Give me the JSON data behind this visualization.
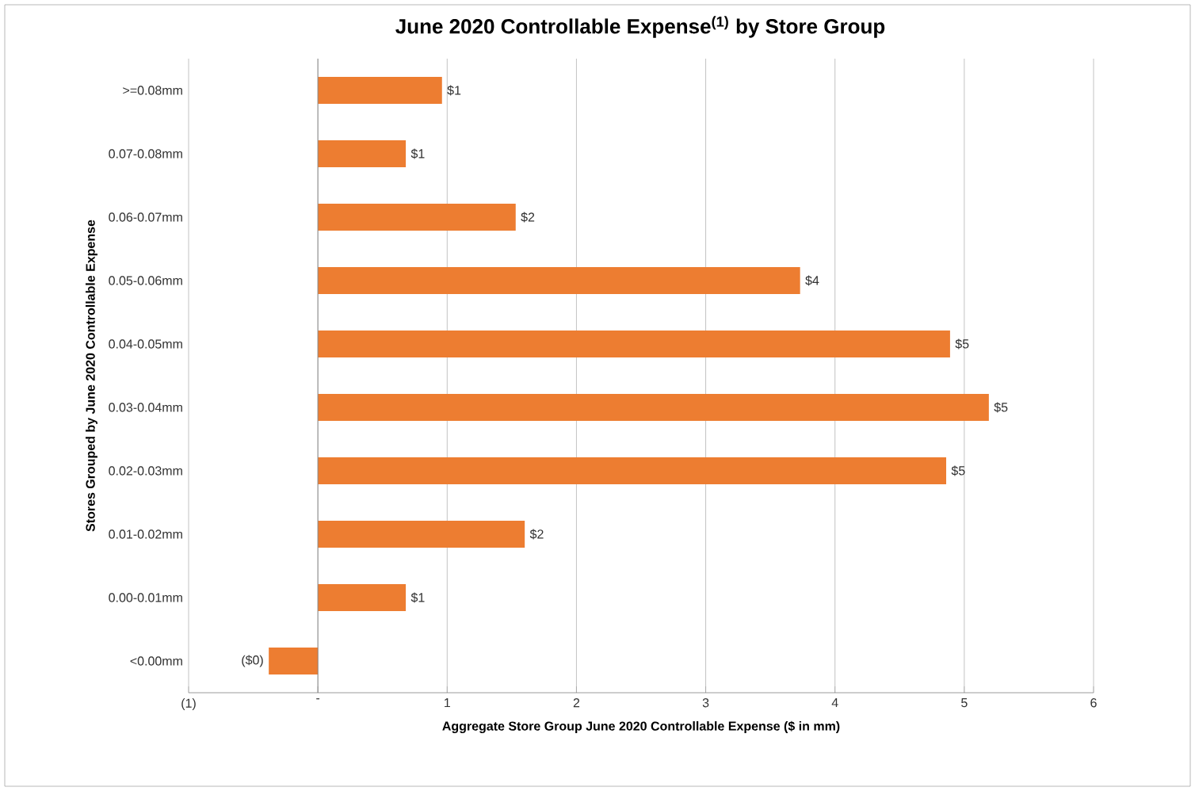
{
  "chart_data": {
    "type": "bar",
    "orientation": "horizontal",
    "title": "June 2020 Controllable Expense$^{(1)}$ by Store Group",
    "xlabel": "Aggregate Store Group June 2020 Controllable Expense ($ in mm)",
    "ylabel": "Stores Grouped by June 2020 Controllable Expense",
    "categories": [
      ">=0.08mm",
      "0.07-0.08mm",
      "0.06-0.07mm",
      "0.05-0.06mm",
      "0.04-0.05mm",
      "0.03-0.04mm",
      "0.02-0.03mm",
      "0.01-0.02mm",
      "0.00-0.01mm",
      "<0.00mm"
    ],
    "values": [
      0.96,
      0.68,
      1.53,
      3.73,
      4.89,
      5.19,
      4.86,
      1.6,
      0.68,
      -0.38
    ],
    "value_labels": [
      "$1",
      "$1",
      "$2",
      "$4",
      "$5",
      "$5",
      "$5",
      "$2",
      "$1",
      "($0)"
    ],
    "color": "#ed7d31",
    "xlim": [
      -1,
      6
    ],
    "xticks": [
      {
        "value": -1,
        "label": "(1)"
      },
      {
        "value": 0,
        "label": "-"
      },
      1,
      2,
      3,
      4,
      5,
      6
    ],
    "grid": "x"
  }
}
